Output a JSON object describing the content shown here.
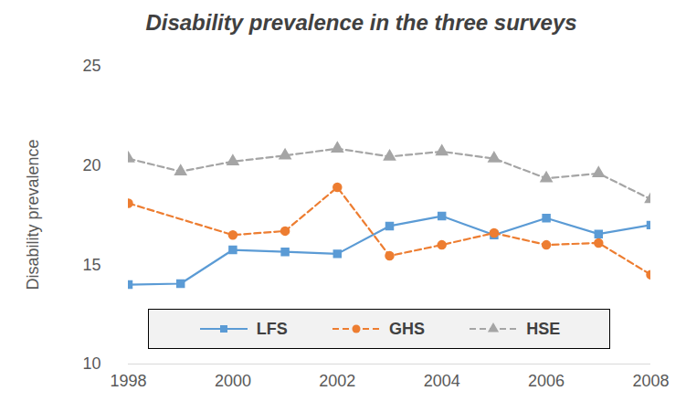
{
  "chart_data": {
    "type": "line",
    "title": "Disability prevalence in the three surveys",
    "y_label": "Disability prevalence",
    "x": [
      1998,
      1999,
      2000,
      2001,
      2002,
      2003,
      2004,
      2005,
      2006,
      2007,
      2008
    ],
    "xlim": [
      1998,
      2008
    ],
    "xticks": [
      1998,
      2000,
      2002,
      2004,
      2006,
      2008
    ],
    "ylim": [
      10,
      25
    ],
    "yticks": [
      10,
      15,
      20,
      25
    ],
    "grid": false,
    "legend": "bottom",
    "series": [
      {
        "name": "LFS",
        "color": "#5b9bd5",
        "marker": "square",
        "line_style": "solid",
        "values": [
          14.0,
          14.05,
          15.75,
          15.65,
          15.55,
          16.95,
          17.45,
          16.5,
          17.35,
          16.55,
          17.0
        ]
      },
      {
        "name": "GHS",
        "color": "#ed7d31",
        "marker": "circle",
        "line_style": "dashed",
        "x": [
          1998,
          2000,
          2001,
          2002,
          2003,
          2004,
          2005,
          2006,
          2007,
          2008
        ],
        "values": [
          18.1,
          16.5,
          16.7,
          18.9,
          15.45,
          16.0,
          16.6,
          16.0,
          16.1,
          14.5
        ]
      },
      {
        "name": "HSE",
        "color": "#a5a5a5",
        "marker": "triangle",
        "line_style": "dashed",
        "values": [
          20.35,
          19.7,
          20.2,
          20.5,
          20.85,
          20.45,
          20.7,
          20.35,
          19.35,
          19.6,
          18.3
        ]
      }
    ]
  }
}
